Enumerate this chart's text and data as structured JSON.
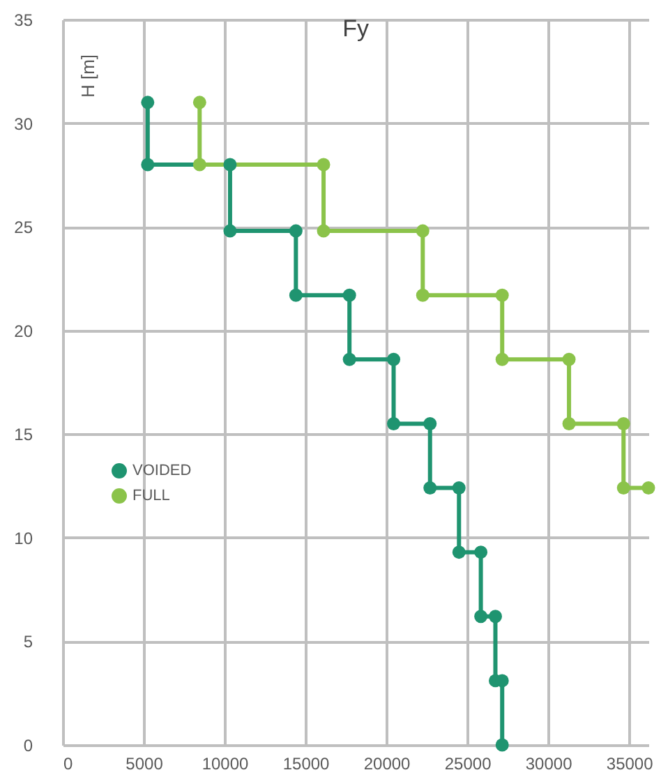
{
  "chart_data": {
    "type": "line",
    "title": "Fy",
    "ylabel": "H [m]",
    "xlim": [
      0,
      36200
    ],
    "ylim": [
      0,
      35
    ],
    "xticks": [
      0,
      5000,
      10000,
      15000,
      20000,
      25000,
      30000,
      35000
    ],
    "yticks": [
      0,
      5,
      10,
      15,
      20,
      25,
      30,
      35
    ],
    "grid": true,
    "legend": "left",
    "marker": "circle",
    "line_style": "solid",
    "series": [
      {
        "name": "VOIDED",
        "color": "#1f9470",
        "x": [
          5250,
          5250,
          10340,
          10340,
          14410,
          14410,
          17720,
          17720,
          20450,
          20450,
          22700,
          22700,
          24490,
          24490,
          25840,
          25840,
          26740,
          26740,
          27160,
          27160
        ],
        "values": [
          31,
          28,
          28,
          24.8,
          24.8,
          21.7,
          21.7,
          18.6,
          18.6,
          15.5,
          15.5,
          12.4,
          12.4,
          9.3,
          9.3,
          6.2,
          6.2,
          3.1,
          3.1,
          0
        ]
      },
      {
        "name": "FULL",
        "color": "#8bc34a",
        "x": [
          8460,
          8460,
          16120,
          16120,
          22250,
          22250,
          27160,
          27160,
          31290,
          31290,
          34660,
          34660,
          36200
        ],
        "values": [
          31,
          28,
          28,
          24.8,
          24.8,
          21.7,
          21.7,
          18.6,
          18.6,
          15.5,
          15.5,
          12.4,
          12.4
        ]
      }
    ]
  }
}
